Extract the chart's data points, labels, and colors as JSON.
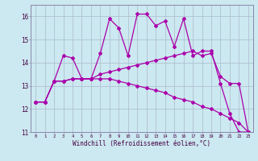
{
  "xlabel": "Windchill (Refroidissement éolien,°C)",
  "bg_color": "#cce8f0",
  "grid_color": "#aabbcc",
  "line_color": "#aa00aa",
  "x_hours": [
    0,
    1,
    2,
    3,
    4,
    5,
    6,
    7,
    8,
    9,
    10,
    11,
    12,
    13,
    14,
    15,
    16,
    17,
    18,
    19,
    20,
    21,
    22,
    23
  ],
  "series1": [
    12.3,
    12.3,
    13.2,
    14.3,
    14.2,
    13.3,
    13.3,
    14.4,
    15.9,
    15.5,
    14.3,
    16.1,
    16.1,
    15.6,
    15.8,
    14.7,
    15.9,
    14.3,
    14.5,
    14.5,
    13.1,
    11.8,
    11.0,
    11.0
  ],
  "series2": [
    12.3,
    12.3,
    13.2,
    13.2,
    13.3,
    13.3,
    13.3,
    13.5,
    13.6,
    13.7,
    13.8,
    13.9,
    14.0,
    14.1,
    14.2,
    14.3,
    14.4,
    14.5,
    14.3,
    14.4,
    13.4,
    13.1,
    13.1,
    11.0
  ],
  "series3": [
    12.3,
    12.3,
    13.2,
    13.2,
    13.3,
    13.3,
    13.3,
    13.3,
    13.3,
    13.2,
    13.1,
    13.0,
    12.9,
    12.8,
    12.7,
    12.5,
    12.4,
    12.3,
    12.1,
    12.0,
    11.8,
    11.6,
    11.4,
    11.0
  ],
  "ylim": [
    11.0,
    16.5
  ],
  "xlim": [
    -0.5,
    23.5
  ],
  "yticks": [
    11,
    12,
    13,
    14,
    15,
    16
  ]
}
